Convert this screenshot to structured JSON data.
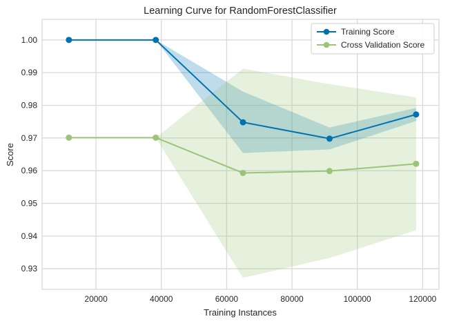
{
  "chart_data": {
    "type": "line",
    "title": "Learning Curve for RandomForestClassifier",
    "xlabel": "Training Instances",
    "ylabel": "Score",
    "xlim": [
      3500,
      125000
    ],
    "ylim": [
      0.9237,
      1.0063
    ],
    "xticks": [
      20000,
      40000,
      60000,
      80000,
      100000,
      120000
    ],
    "xtick_labels": [
      "20000",
      "40000",
      "60000",
      "80000",
      "100000",
      "120000"
    ],
    "yticks": [
      0.93,
      0.94,
      0.95,
      0.96,
      0.97,
      0.98,
      0.99,
      1.0
    ],
    "ytick_labels": [
      "0.93",
      "0.94",
      "0.95",
      "0.96",
      "0.97",
      "0.98",
      "0.99",
      "1.00"
    ],
    "grid": true,
    "legend_position": "top-right",
    "x": [
      11700,
      38300,
      65000,
      91500,
      118000
    ],
    "series": [
      {
        "name": "Training Score",
        "color": "#0072B2",
        "values": [
          1.0,
          1.0,
          0.9748,
          0.9698,
          0.9772
        ],
        "band_lower": [
          1.0,
          1.0,
          0.9654,
          0.9665,
          0.9752
        ],
        "band_upper": [
          1.0,
          1.0,
          0.9842,
          0.9732,
          0.9792
        ]
      },
      {
        "name": "Cross Validation Score",
        "color": "#9BC47A",
        "values": [
          0.9701,
          0.9701,
          0.9593,
          0.9599,
          0.9621
        ],
        "band_lower": [
          0.9701,
          0.9701,
          0.9272,
          0.9333,
          0.9418
        ],
        "band_upper": [
          0.9701,
          0.9701,
          0.9912,
          0.9865,
          0.9824
        ]
      }
    ]
  }
}
